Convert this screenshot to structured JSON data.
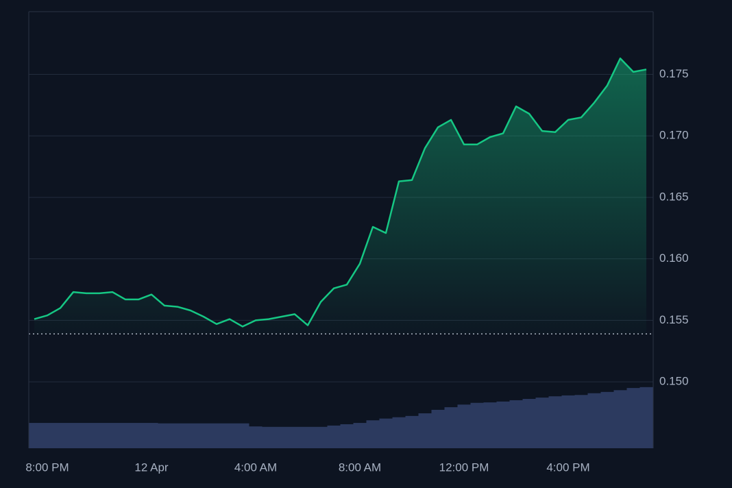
{
  "chart_data": {
    "type": "line",
    "categories": [
      null,
      "8:00 PM",
      null,
      null,
      null,
      null,
      null,
      null,
      null,
      "12 Apr",
      null,
      null,
      null,
      null,
      null,
      null,
      null,
      "4:00 AM",
      null,
      null,
      null,
      null,
      null,
      null,
      null,
      "8:00 AM",
      null,
      null,
      null,
      null,
      null,
      null,
      null,
      "12:00 PM",
      null,
      null,
      null,
      null,
      null,
      null,
      null,
      "4:00 PM",
      null,
      null,
      null,
      null,
      null,
      null
    ],
    "series": [
      {
        "color": "#16c784",
        "values": [
          0.1551,
          0.1554,
          0.156,
          0.1573,
          0.1572,
          0.1572,
          0.1573,
          0.1567,
          0.1567,
          0.1571,
          0.1562,
          0.1561,
          0.1558,
          0.1553,
          0.1547,
          0.1551,
          0.1545,
          0.155,
          0.1551,
          0.1553,
          0.1555,
          0.1546,
          0.1565,
          0.1576,
          0.1579,
          0.1596,
          0.1626,
          0.1621,
          0.1663,
          0.1664,
          0.169,
          0.1707,
          0.1713,
          0.1693,
          0.1693,
          0.1699,
          0.1702,
          0.1724,
          0.1718,
          0.1704,
          0.1703,
          0.1713,
          0.1715,
          0.1727,
          0.1741,
          0.1763,
          0.1752,
          0.1754
        ]
      },
      {
        "color": "#2c3a5f",
        "axis": "y2",
        "type": "bar",
        "values": [
          5.8,
          5.8,
          5.8,
          5.8,
          5.8,
          5.8,
          5.8,
          5.8,
          5.8,
          5.8,
          5.7,
          5.7,
          5.7,
          5.7,
          5.7,
          5.7,
          5.7,
          5.0,
          4.9,
          4.9,
          4.9,
          4.9,
          4.9,
          5.2,
          5.5,
          5.8,
          6.4,
          6.8,
          7.1,
          7.4,
          8.0,
          8.8,
          9.4,
          10.0,
          10.4,
          10.5,
          10.7,
          11.0,
          11.3,
          11.6,
          11.9,
          12.1,
          12.2,
          12.6,
          12.9,
          13.3,
          13.8,
          14.0
        ]
      }
    ],
    "baseline": 0.1539,
    "ylim": [
      0.1446,
      0.1801
    ],
    "yticks": [
      {
        "value": 0.15,
        "label": "0.150"
      },
      0.155,
      {
        "value": 0.16,
        "label": "0.160"
      },
      0.165,
      {
        "value": 0.17,
        "label": "0.170"
      },
      0.175
    ],
    "y2lim": [
      0,
      100
    ],
    "grid": true
  }
}
